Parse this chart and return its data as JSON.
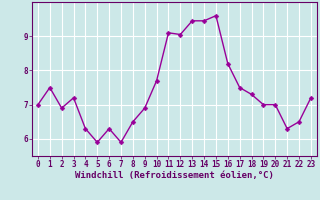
{
  "x": [
    0,
    1,
    2,
    3,
    4,
    5,
    6,
    7,
    8,
    9,
    10,
    11,
    12,
    13,
    14,
    15,
    16,
    17,
    18,
    19,
    20,
    21,
    22,
    23
  ],
  "y": [
    7.0,
    7.5,
    6.9,
    7.2,
    6.3,
    5.9,
    6.3,
    5.9,
    6.5,
    6.9,
    7.7,
    9.1,
    9.05,
    9.45,
    9.45,
    9.6,
    8.2,
    7.5,
    7.3,
    7.0,
    7.0,
    6.3,
    6.5,
    7.2
  ],
  "line_color": "#990099",
  "marker_color": "#990099",
  "bg_color": "#cce8e8",
  "grid_color": "#ffffff",
  "xlabel": "Windchill (Refroidissement éolien,°C)",
  "ylim": [
    5.5,
    10.0
  ],
  "xlim": [
    -0.5,
    23.5
  ],
  "yticks": [
    6,
    7,
    8,
    9
  ],
  "xticks": [
    0,
    1,
    2,
    3,
    4,
    5,
    6,
    7,
    8,
    9,
    10,
    11,
    12,
    13,
    14,
    15,
    16,
    17,
    18,
    19,
    20,
    21,
    22,
    23
  ],
  "tick_label_fontsize": 5.5,
  "xlabel_fontsize": 6.5,
  "line_width": 1.0,
  "marker_size": 2.5,
  "spine_color": "#660066",
  "tick_color": "#660066",
  "label_color": "#660066"
}
